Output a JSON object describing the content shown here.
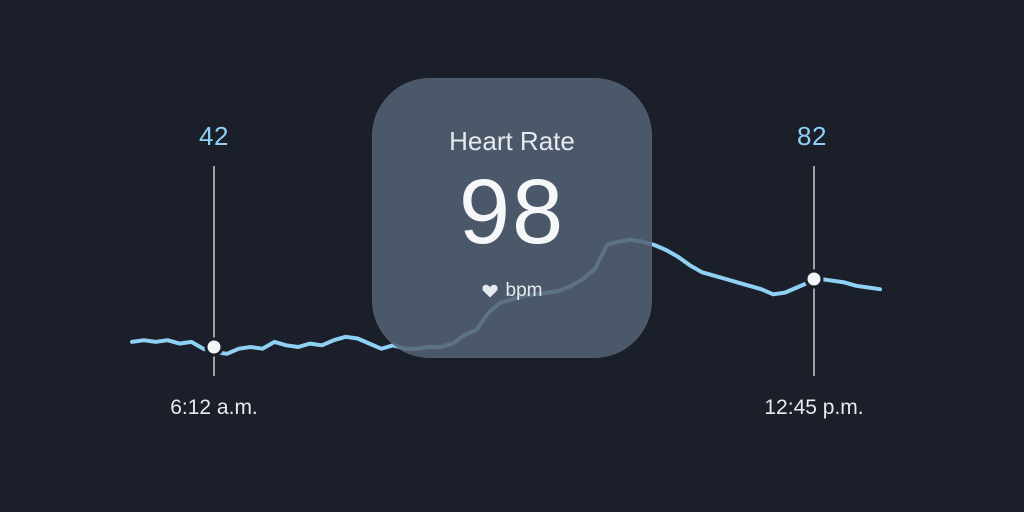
{
  "colors": {
    "background": "#1b1f2a",
    "line": "#8fd0f5",
    "marker_line": "#9aa0a8",
    "card": "#546274"
  },
  "card": {
    "title": "Heart Rate",
    "value": "98",
    "unit": "bpm",
    "icon": "heart-icon"
  },
  "markers": [
    {
      "value": "42",
      "time": "6:12 a.m."
    },
    {
      "value": "82",
      "time": "12:45 p.m."
    }
  ],
  "chart_data": {
    "type": "line",
    "title": "",
    "xlabel": "",
    "ylabel": "",
    "grid": false,
    "series": [
      {
        "values": [
          45,
          46,
          45,
          46,
          44,
          45,
          41,
          39,
          38,
          41,
          42,
          41,
          45,
          43,
          42,
          44,
          43,
          46,
          48,
          47,
          44,
          41,
          43,
          41,
          41,
          42,
          42,
          44,
          49,
          52,
          62,
          68,
          70,
          72,
          73,
          74,
          75,
          78,
          82,
          88,
          102,
          104,
          105,
          104,
          102,
          99,
          95,
          90,
          86,
          84,
          82,
          80,
          78,
          76,
          73,
          74,
          77,
          80,
          82,
          81,
          80,
          78,
          77,
          76
        ]
      }
    ]
  }
}
